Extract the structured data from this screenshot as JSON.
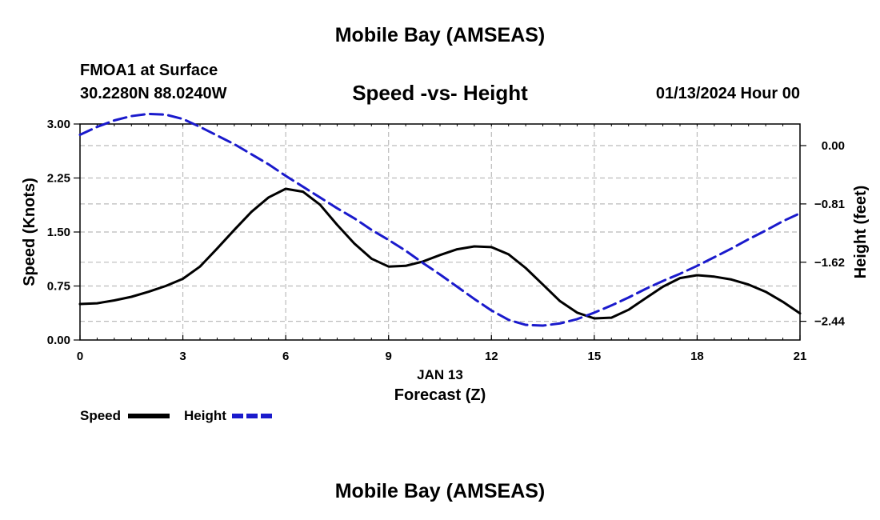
{
  "header": {
    "main_title": "Mobile Bay (AMSEAS)",
    "station": "FMOA1 at Surface",
    "coordinates": "30.2280N  88.0240W",
    "subtitle": "Speed -vs- Height",
    "datetime": "01/13/2024 Hour 00"
  },
  "footer": {
    "title": "Mobile Bay (AMSEAS)"
  },
  "legend": {
    "speed_label": "Speed",
    "height_label": "Height"
  },
  "colors": {
    "speed": "#000000",
    "height": "#1a1acc",
    "grid": "#bbbbbb"
  },
  "chart_data": {
    "type": "line",
    "title": "Speed -vs- Height",
    "xlabel": "Forecast (Z)",
    "xlabel_date": "JAN 13",
    "ylabel": "Speed (Knots)",
    "y2label": "Height (feet)",
    "xlim": [
      0,
      21
    ],
    "ylim": [
      0,
      3
    ],
    "y2lim": [
      -2.7,
      0.3
    ],
    "x_ticks": [
      0,
      3,
      6,
      9,
      12,
      15,
      18,
      21
    ],
    "x_tick_labels": [
      "0",
      "3",
      "6",
      "9",
      "12",
      "15",
      "18",
      "21"
    ],
    "y_ticks": [
      0,
      0.75,
      1.5,
      2.25,
      3.0
    ],
    "y_tick_labels": [
      "0.00",
      "0.75",
      "1.50",
      "2.25",
      "3.00"
    ],
    "y2_ticks": [
      0,
      -0.81,
      -1.62,
      -2.44
    ],
    "y2_tick_labels": [
      "0.00",
      "−0.81",
      "−1.62",
      "−2.44"
    ],
    "legend_position": "bottom-left",
    "series": [
      {
        "name": "Speed",
        "axis": "left",
        "style": "solid",
        "x": [
          0,
          0.5,
          1,
          1.5,
          2,
          2.5,
          3,
          3.5,
          4,
          4.5,
          5,
          5.5,
          6,
          6.5,
          7,
          7.5,
          8,
          8.5,
          9,
          9.5,
          10,
          10.5,
          11,
          11.5,
          12,
          12.5,
          13,
          13.5,
          14,
          14.5,
          15,
          15.5,
          16,
          16.5,
          17,
          17.5,
          18,
          18.5,
          19,
          19.5,
          20,
          20.5,
          21
        ],
        "values": [
          0.5,
          0.51,
          0.55,
          0.6,
          0.67,
          0.75,
          0.85,
          1.02,
          1.27,
          1.53,
          1.78,
          1.98,
          2.1,
          2.06,
          1.88,
          1.6,
          1.34,
          1.13,
          1.02,
          1.03,
          1.09,
          1.18,
          1.26,
          1.3,
          1.29,
          1.19,
          1.0,
          0.77,
          0.54,
          0.38,
          0.3,
          0.31,
          0.42,
          0.58,
          0.74,
          0.86,
          0.9,
          0.88,
          0.84,
          0.77,
          0.67,
          0.53,
          0.37
        ]
      },
      {
        "name": "Height",
        "axis": "right",
        "style": "dashed",
        "x": [
          0,
          0.5,
          1,
          1.5,
          2,
          2.5,
          3,
          3.5,
          4,
          4.5,
          5,
          5.5,
          6,
          6.5,
          7,
          7.5,
          8,
          8.5,
          9,
          9.5,
          10,
          10.5,
          11,
          11.5,
          12,
          12.5,
          13,
          13.5,
          14,
          14.5,
          15,
          15.5,
          16,
          16.5,
          17,
          17.5,
          18,
          18.5,
          19,
          19.5,
          20,
          20.5,
          21
        ],
        "values": [
          0.15,
          0.26,
          0.35,
          0.41,
          0.44,
          0.43,
          0.37,
          0.26,
          0.14,
          0.02,
          -0.12,
          -0.26,
          -0.42,
          -0.57,
          -0.72,
          -0.87,
          -1.01,
          -1.17,
          -1.31,
          -1.46,
          -1.63,
          -1.79,
          -1.96,
          -2.13,
          -2.29,
          -2.42,
          -2.49,
          -2.5,
          -2.47,
          -2.41,
          -2.32,
          -2.22,
          -2.11,
          -1.99,
          -1.88,
          -1.78,
          -1.67,
          -1.55,
          -1.43,
          -1.3,
          -1.18,
          -1.05,
          -0.94
        ]
      }
    ]
  }
}
